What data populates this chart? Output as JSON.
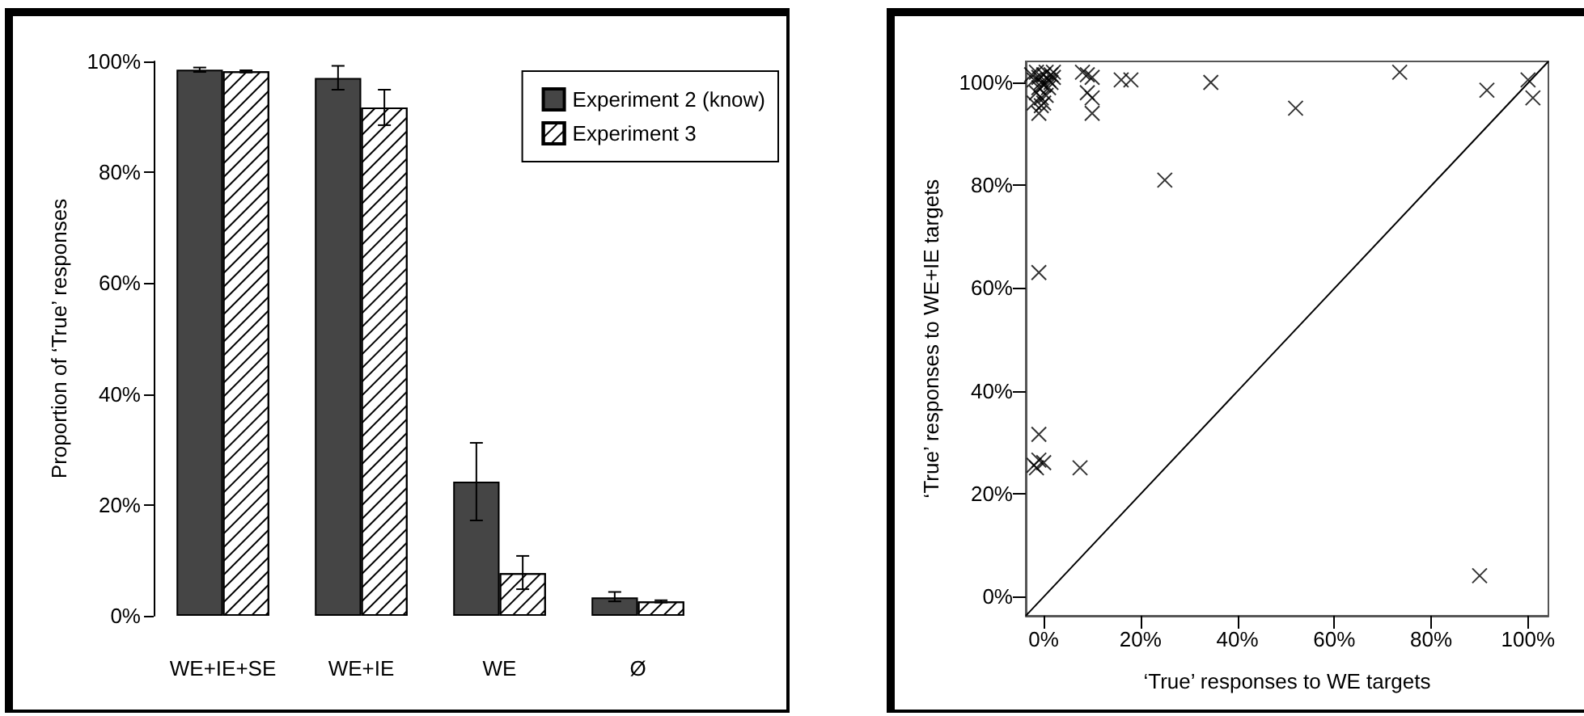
{
  "chart_data": [
    {
      "type": "bar",
      "ylabel": "Proportion of ‘True’ responses",
      "categories": [
        "WE+IE+SE",
        "WE+IE",
        "WE",
        "Ø"
      ],
      "series": [
        {
          "name": "Experiment 2 (know)",
          "color": "#454545",
          "values": [
            98.5,
            97,
            24.2,
            3.3
          ],
          "errors": [
            [
              98.1,
              98.9
            ],
            [
              94.9,
              99.2
            ],
            [
              17.2,
              31.2
            ],
            [
              2.6,
              4.3
            ]
          ]
        },
        {
          "name": "Experiment 3",
          "color": "#ffffff",
          "values": [
            98.2,
            91.7,
            7.7,
            2.6
          ],
          "errors": [
            [
              98,
              98.4
            ],
            [
              88.5,
              94.9
            ],
            [
              4.8,
              10.8
            ],
            [
              2.4,
              2.8
            ]
          ]
        }
      ],
      "ylim": [
        0,
        100
      ],
      "yticks": [
        {
          "value": 0,
          "label": "0%"
        },
        {
          "value": 20,
          "label": "20%"
        },
        {
          "value": 40,
          "label": "40%"
        },
        {
          "value": 60,
          "label": "60%"
        },
        {
          "value": 80,
          "label": "80%"
        },
        {
          "value": 100,
          "label": "100%"
        }
      ],
      "legend": "top right"
    },
    {
      "type": "scatter",
      "xlabel": "‘True’ responses to WE targets",
      "ylabel": "‘True’ responses to WE+IE targets",
      "series": [
        {
          "color": "#000000",
          "marker": "cross",
          "x": [
            -2.5,
            -2,
            -1.5,
            -1,
            -0.5,
            0,
            0.5,
            1,
            1.5,
            2,
            -1.5,
            -1,
            0,
            1,
            -0.5,
            0,
            0.5,
            -1,
            -0.5,
            1.5,
            2,
            -2,
            8,
            9,
            10,
            9,
            10,
            10,
            16,
            18,
            34.5,
            52,
            73.5,
            91.5,
            100,
            101,
            25,
            -1,
            -1,
            -1.5,
            -2,
            -1,
            0,
            7.5,
            90
          ],
          "values": [
            101.5,
            100.5,
            102,
            101,
            100,
            101.5,
            102,
            100.5,
            101.5,
            101,
            98,
            99,
            99.5,
            99,
            97,
            96,
            97.5,
            94,
            95.5,
            100,
            102,
            96,
            102,
            101.5,
            101,
            98,
            97,
            94,
            100.5,
            100.5,
            100,
            95,
            102,
            98.5,
            100.5,
            97,
            81,
            63,
            31.5,
            25,
            25.5,
            26.5,
            26,
            25,
            4
          ]
        },
        {
          "type": "line",
          "color": "#000000",
          "marker": "none",
          "x": [
            -3.7,
            104.2
          ],
          "values": [
            -3.8,
            104.1
          ]
        }
      ],
      "xlim": [
        -3.7,
        104.2
      ],
      "ylim": [
        -3.8,
        104.1
      ],
      "xticks": [
        {
          "value": 0,
          "label": "0%"
        },
        {
          "value": 20,
          "label": "20%"
        },
        {
          "value": 40,
          "label": "40%"
        },
        {
          "value": 60,
          "label": "60%"
        },
        {
          "value": 80,
          "label": "80%"
        },
        {
          "value": 100,
          "label": "100%"
        }
      ],
      "yticks": [
        {
          "value": 0,
          "label": "0%"
        },
        {
          "value": 20,
          "label": "20%"
        },
        {
          "value": 40,
          "label": "40%"
        },
        {
          "value": 60,
          "label": "60%"
        },
        {
          "value": 80,
          "label": "80%"
        },
        {
          "value": 100,
          "label": "100%"
        }
      ]
    }
  ]
}
